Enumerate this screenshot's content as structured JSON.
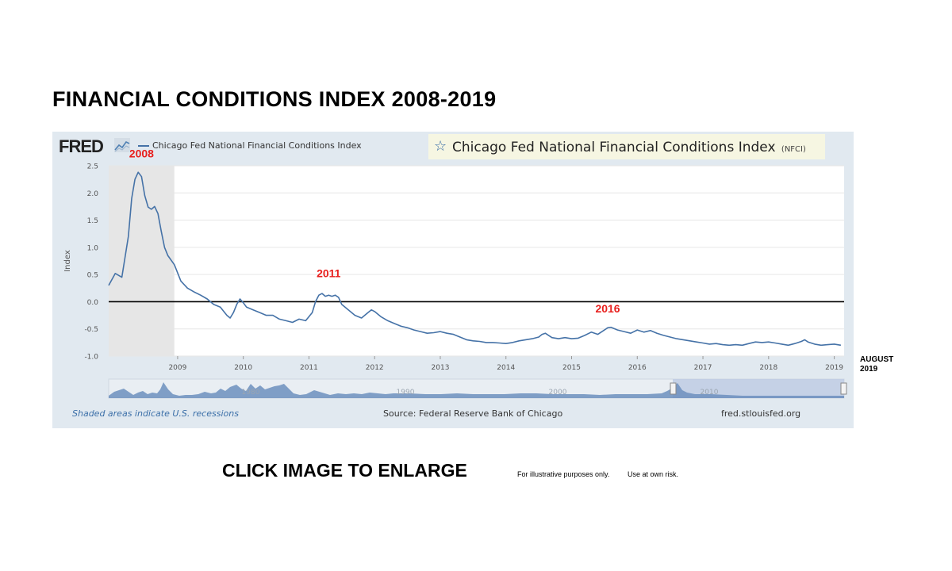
{
  "page": {
    "title": "FINANCIAL CONDITIONS INDEX 2008-2019",
    "cta": "CLICK IMAGE TO ENLARGE",
    "disclaimer_1": "For illustrative purposes only.",
    "disclaimer_2": "Use at own risk.",
    "end_label_line1": "AUGUST",
    "end_label_line2": "2019"
  },
  "fred": {
    "logo": "FRED",
    "legend_label": "Chicago Fed National Financial Conditions Index",
    "series_title": "Chicago Fed National Financial Conditions Index",
    "series_code": "(NFCI)",
    "recession_note": "Shaded areas indicate U.S. recessions",
    "source": "Source: Federal Reserve Bank of Chicago",
    "url": "fred.stlouisfed.org",
    "navigator_labels": [
      "1980",
      "1990",
      "2000",
      "2010"
    ]
  },
  "colors": {
    "series": "#4572a7",
    "recession": "#e6e6e6",
    "annotation": "#e8201e",
    "panel_bg": "#e1e9f0",
    "title_box": "#f6f6e2"
  },
  "chart_data": {
    "type": "line",
    "title": "Chicago Fed National Financial Conditions Index",
    "ylabel": "Index",
    "xlabel": "",
    "xlim": [
      2008.45,
      2019.65
    ],
    "ylim": [
      -1.0,
      2.5
    ],
    "yticks": [
      "2.5",
      "2.0",
      "1.5",
      "1.0",
      "0.5",
      "0.0",
      "-0.5",
      "-1.0"
    ],
    "xticks": [
      "2009",
      "2010",
      "2011",
      "2012",
      "2013",
      "2014",
      "2015",
      "2016",
      "2017",
      "2018",
      "2019"
    ],
    "recession": [
      2008.45,
      2009.45
    ],
    "reference_line": 0,
    "annotations": [
      {
        "text": "2008",
        "x": 2008.95,
        "y": 2.65
      },
      {
        "text": "2011",
        "x": 2011.8,
        "y": 0.45
      },
      {
        "text": "2016",
        "x": 2016.05,
        "y": -0.2
      }
    ],
    "series": [
      {
        "name": "Chicago Fed National Financial Conditions Index",
        "x": [
          2008.45,
          2008.55,
          2008.65,
          2008.75,
          2008.8,
          2008.85,
          2008.9,
          2008.95,
          2009.0,
          2009.05,
          2009.1,
          2009.15,
          2009.2,
          2009.25,
          2009.3,
          2009.35,
          2009.45,
          2009.55,
          2009.65,
          2009.75,
          2009.85,
          2009.95,
          2010.05,
          2010.15,
          2010.25,
          2010.3,
          2010.35,
          2010.4,
          2010.45,
          2010.5,
          2010.55,
          2010.65,
          2010.75,
          2010.85,
          2010.95,
          2011.05,
          2011.15,
          2011.25,
          2011.35,
          2011.45,
          2011.55,
          2011.6,
          2011.65,
          2011.7,
          2011.75,
          2011.8,
          2011.85,
          2011.9,
          2011.95,
          2012.0,
          2012.1,
          2012.2,
          2012.3,
          2012.4,
          2012.45,
          2012.5,
          2012.6,
          2012.7,
          2012.8,
          2012.9,
          2013.0,
          2013.1,
          2013.2,
          2013.3,
          2013.4,
          2013.5,
          2013.6,
          2013.7,
          2013.8,
          2013.9,
          2014.0,
          2014.1,
          2014.2,
          2014.3,
          2014.4,
          2014.5,
          2014.6,
          2014.7,
          2014.8,
          2014.9,
          2015.0,
          2015.05,
          2015.1,
          2015.15,
          2015.2,
          2015.3,
          2015.4,
          2015.5,
          2015.6,
          2015.7,
          2015.8,
          2015.9,
          2016.0,
          2016.05,
          2016.1,
          2016.2,
          2016.3,
          2016.4,
          2016.5,
          2016.6,
          2016.7,
          2016.8,
          2016.9,
          2017.0,
          2017.1,
          2017.2,
          2017.3,
          2017.4,
          2017.5,
          2017.6,
          2017.7,
          2017.8,
          2017.9,
          2018.0,
          2018.1,
          2018.2,
          2018.3,
          2018.4,
          2018.5,
          2018.6,
          2018.7,
          2018.8,
          2018.9,
          2019.0,
          2019.05,
          2019.1,
          2019.2,
          2019.3,
          2019.4,
          2019.5,
          2019.6
        ],
        "values": [
          0.3,
          0.52,
          0.45,
          1.2,
          1.9,
          2.25,
          2.38,
          2.3,
          1.95,
          1.74,
          1.7,
          1.75,
          1.62,
          1.3,
          1.0,
          0.85,
          0.68,
          0.38,
          0.25,
          0.18,
          0.12,
          0.05,
          -0.05,
          -0.1,
          -0.25,
          -0.3,
          -0.2,
          -0.05,
          0.05,
          -0.02,
          -0.1,
          -0.15,
          -0.2,
          -0.25,
          -0.25,
          -0.32,
          -0.35,
          -0.38,
          -0.32,
          -0.35,
          -0.2,
          0.0,
          0.12,
          0.15,
          0.1,
          0.12,
          0.1,
          0.12,
          0.08,
          -0.05,
          -0.15,
          -0.25,
          -0.3,
          -0.2,
          -0.15,
          -0.18,
          -0.28,
          -0.35,
          -0.4,
          -0.45,
          -0.48,
          -0.52,
          -0.55,
          -0.58,
          -0.57,
          -0.55,
          -0.58,
          -0.6,
          -0.65,
          -0.7,
          -0.72,
          -0.73,
          -0.75,
          -0.75,
          -0.76,
          -0.77,
          -0.75,
          -0.72,
          -0.7,
          -0.68,
          -0.65,
          -0.6,
          -0.58,
          -0.62,
          -0.66,
          -0.68,
          -0.66,
          -0.68,
          -0.67,
          -0.62,
          -0.56,
          -0.6,
          -0.52,
          -0.48,
          -0.47,
          -0.52,
          -0.55,
          -0.58,
          -0.52,
          -0.56,
          -0.53,
          -0.58,
          -0.62,
          -0.65,
          -0.68,
          -0.7,
          -0.72,
          -0.74,
          -0.76,
          -0.78,
          -0.77,
          -0.79,
          -0.8,
          -0.79,
          -0.8,
          -0.77,
          -0.74,
          -0.75,
          -0.74,
          -0.76,
          -0.78,
          -0.8,
          -0.77,
          -0.73,
          -0.7,
          -0.74,
          -0.78,
          -0.8,
          -0.79,
          -0.78,
          -0.8
        ]
      }
    ]
  }
}
